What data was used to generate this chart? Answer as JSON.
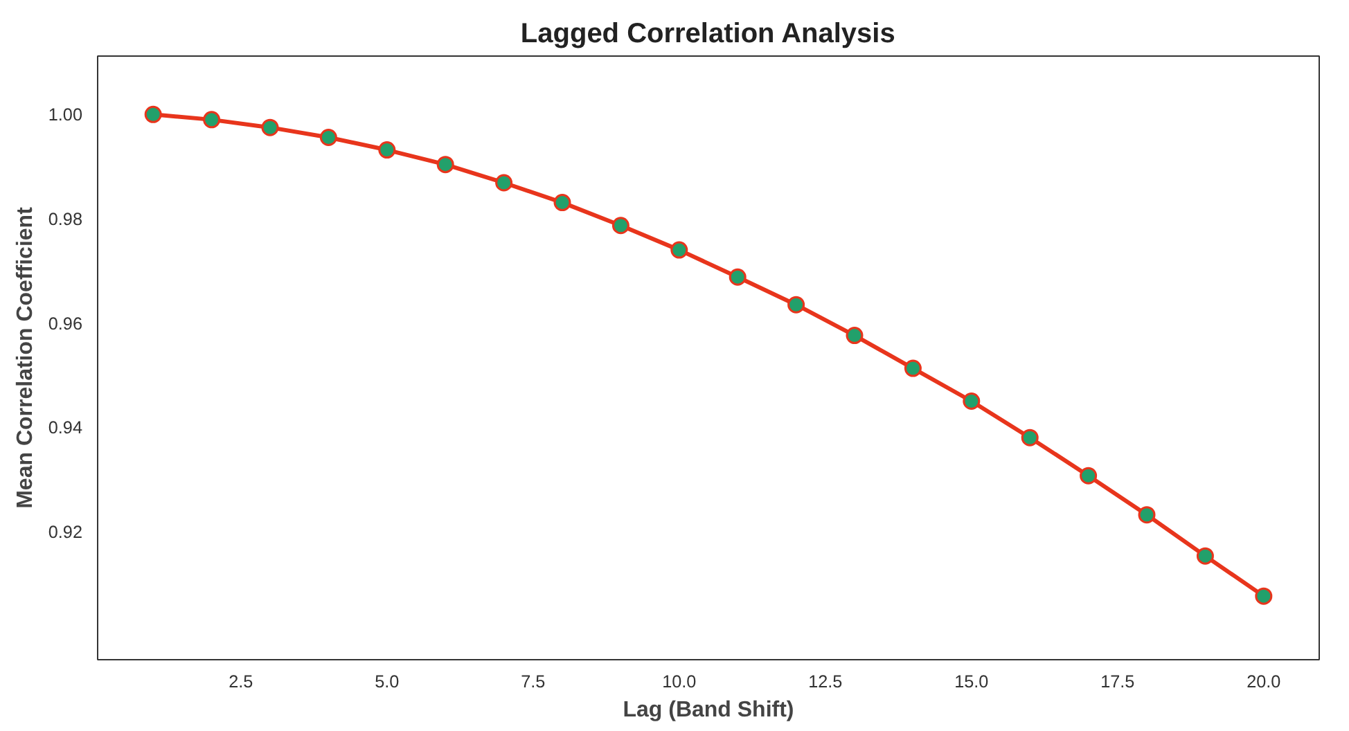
{
  "chart_data": {
    "type": "line",
    "title": "Lagged Correlation Analysis",
    "xlabel": "Lag (Band Shift)",
    "ylabel": "Mean Correlation Coefficient",
    "x": [
      1,
      2,
      3,
      4,
      5,
      6,
      7,
      8,
      9,
      10,
      11,
      12,
      13,
      14,
      15,
      16,
      17,
      18,
      19,
      20
    ],
    "series": [
      {
        "color": "#e8351c",
        "values": [
          1.0,
          0.999,
          0.9975,
          0.9956,
          0.9932,
          0.9904,
          0.9869,
          0.9831,
          0.9787,
          0.974,
          0.9688,
          0.9635,
          0.9576,
          0.9513,
          0.945,
          0.938,
          0.9307,
          0.9232,
          0.9153,
          0.9076
        ]
      }
    ],
    "marker": "circle",
    "line_style": "solid",
    "grid": false,
    "xlim": [
      0.05,
      20.95
    ],
    "ylim": [
      0.8954,
      1.0112
    ],
    "xticks": [
      {
        "value": 2.5,
        "label": "2.5"
      },
      {
        "value": 5,
        "label": "5.0"
      },
      {
        "value": 7.5,
        "label": "7.5"
      },
      {
        "value": 10,
        "label": "10.0"
      },
      {
        "value": 12.5,
        "label": "12.5"
      },
      {
        "value": 15,
        "label": "15.0"
      },
      {
        "value": 17.5,
        "label": "17.5"
      },
      {
        "value": 20,
        "label": "20.0"
      }
    ],
    "yticks": [
      {
        "value": 0.92,
        "label": "0.92"
      },
      {
        "value": 0.94,
        "label": "0.94"
      },
      {
        "value": 0.96,
        "label": "0.96"
      },
      {
        "value": 0.98,
        "label": "0.98"
      },
      {
        "value": 1.0,
        "label": "1.00"
      }
    ]
  }
}
